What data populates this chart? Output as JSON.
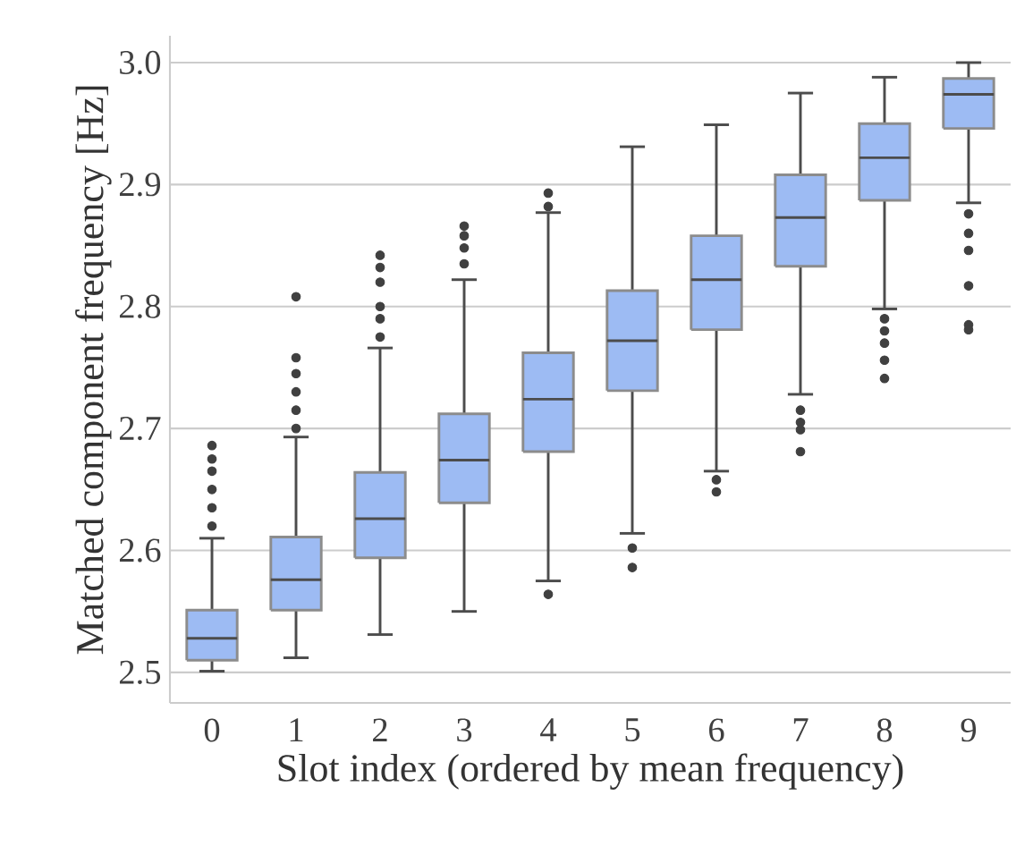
{
  "chart_data": {
    "type": "box",
    "xlabel": "Slot index (ordered by mean frequency)",
    "ylabel": "Matched component frequency [Hz]",
    "categories": [
      "0",
      "1",
      "2",
      "3",
      "4",
      "5",
      "6",
      "7",
      "8",
      "9"
    ],
    "color": "#9dbbf3",
    "boxes": [
      {
        "low": 2.501,
        "q1": 2.51,
        "median": 2.528,
        "q3": 2.551,
        "high": 2.61,
        "outliers": [
          2.62,
          2.635,
          2.65,
          2.665,
          2.675,
          2.686
        ]
      },
      {
        "low": 2.512,
        "q1": 2.551,
        "median": 2.576,
        "q3": 2.611,
        "high": 2.693,
        "outliers": [
          2.7,
          2.715,
          2.73,
          2.745,
          2.758,
          2.808
        ]
      },
      {
        "low": 2.531,
        "q1": 2.594,
        "median": 2.626,
        "q3": 2.664,
        "high": 2.766,
        "outliers": [
          2.775,
          2.79,
          2.8,
          2.82,
          2.832,
          2.842
        ]
      },
      {
        "low": 2.55,
        "q1": 2.639,
        "median": 2.674,
        "q3": 2.712,
        "high": 2.822,
        "outliers": [
          2.835,
          2.848,
          2.858,
          2.866
        ]
      },
      {
        "low": 2.575,
        "q1": 2.681,
        "median": 2.724,
        "q3": 2.762,
        "high": 2.877,
        "outliers": [
          2.564,
          2.882,
          2.893
        ]
      },
      {
        "low": 2.614,
        "q1": 2.731,
        "median": 2.772,
        "q3": 2.813,
        "high": 2.931,
        "outliers": [
          2.602,
          2.586
        ]
      },
      {
        "low": 2.665,
        "q1": 2.781,
        "median": 2.822,
        "q3": 2.858,
        "high": 2.949,
        "outliers": [
          2.658,
          2.648
        ]
      },
      {
        "low": 2.728,
        "q1": 2.833,
        "median": 2.873,
        "q3": 2.908,
        "high": 2.975,
        "outliers": [
          2.715,
          2.705,
          2.699,
          2.681
        ]
      },
      {
        "low": 2.798,
        "q1": 2.887,
        "median": 2.922,
        "q3": 2.95,
        "high": 2.988,
        "outliers": [
          2.79,
          2.78,
          2.77,
          2.756,
          2.741
        ]
      },
      {
        "low": 2.885,
        "q1": 2.946,
        "median": 2.974,
        "q3": 2.987,
        "high": 3.0,
        "outliers": [
          2.876,
          2.86,
          2.846,
          2.817,
          2.785,
          2.781
        ]
      }
    ],
    "ylim": [
      2.475,
      3.022
    ],
    "yticks": [
      2.5,
      2.6,
      2.7,
      2.8,
      2.9,
      {
        "value": 3.0,
        "label": "3.0"
      }
    ],
    "grid": "y"
  }
}
